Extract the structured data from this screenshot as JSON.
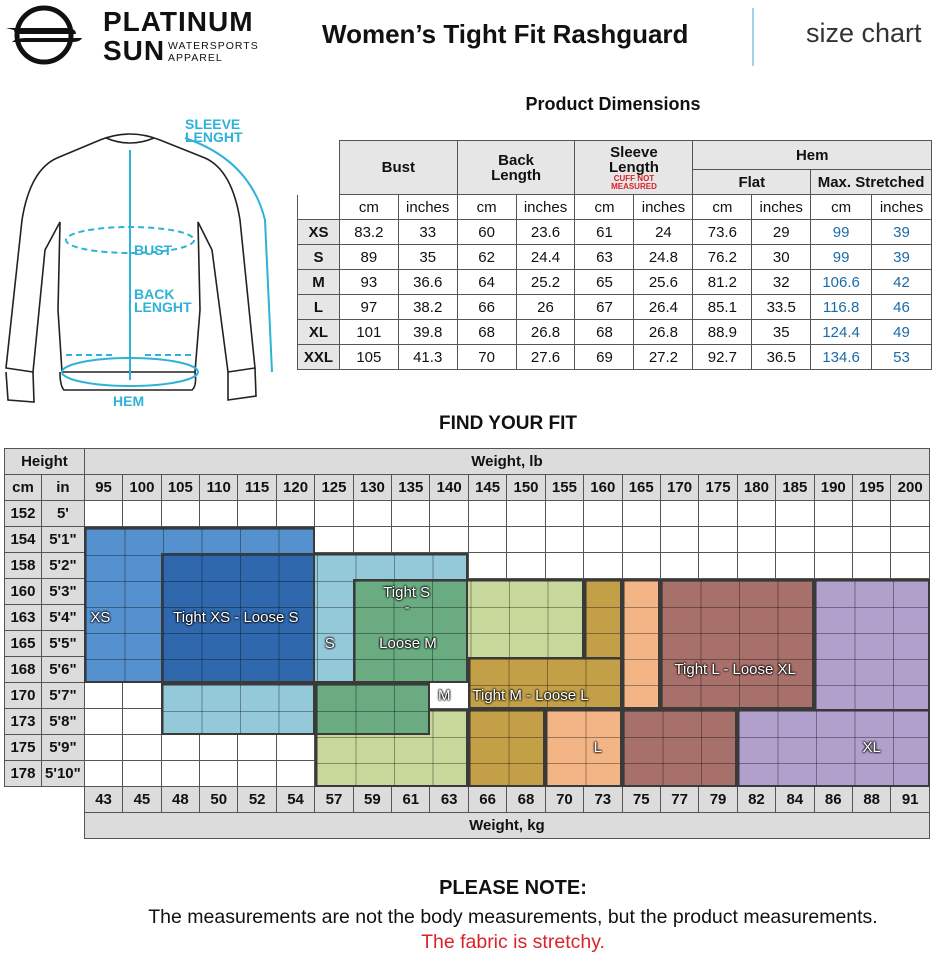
{
  "brand": {
    "name_line1": "PLATINUM",
    "name_line2": "SUN",
    "sub_line1": "WATERSPORTS",
    "sub_line2": "APPAREL"
  },
  "header": {
    "title": "Women’s Tight Fit Rashguard",
    "size_chart": "size chart"
  },
  "diagram": {
    "sleeve_label": "SLEEVE\nLENGHT",
    "bust_label": "BUST",
    "back_label": "BACK\nLENGHT",
    "hem_label": "HEM"
  },
  "dimensions": {
    "title": "Product Dimensions",
    "groups": {
      "bust": "Bust",
      "back": "Back Length",
      "sleeve": "Sleeve Length",
      "sleeve_note": "CUFF NOT MEASURED",
      "hem": "Hem",
      "flat": "Flat",
      "stretched": "Max. Stretched"
    },
    "units": [
      "cm",
      "inches",
      "cm",
      "inches",
      "cm",
      "inches",
      "cm",
      "inches",
      "cm",
      "inches"
    ],
    "rows": [
      {
        "size": "XS",
        "values": [
          "83.2",
          "33",
          "60",
          "23.6",
          "61",
          "24",
          "73.6",
          "29",
          "99",
          "39"
        ]
      },
      {
        "size": "S",
        "values": [
          "89",
          "35",
          "62",
          "24.4",
          "63",
          "24.8",
          "76.2",
          "30",
          "99",
          "39"
        ]
      },
      {
        "size": "M",
        "values": [
          "93",
          "36.6",
          "64",
          "25.2",
          "65",
          "25.6",
          "81.2",
          "32",
          "106.6",
          "42"
        ]
      },
      {
        "size": "L",
        "values": [
          "97",
          "38.2",
          "66",
          "26",
          "67",
          "26.4",
          "85.1",
          "33.5",
          "116.8",
          "46"
        ]
      },
      {
        "size": "XL",
        "values": [
          "101",
          "39.8",
          "68",
          "26.8",
          "68",
          "26.8",
          "88.9",
          "35",
          "124.4",
          "49"
        ]
      },
      {
        "size": "XXL",
        "values": [
          "105",
          "41.3",
          "70",
          "27.6",
          "69",
          "27.2",
          "92.7",
          "36.5",
          "134.6",
          "53"
        ]
      }
    ]
  },
  "fit": {
    "title": "FIND YOUR FIT",
    "height_label": "Height",
    "weight_lb_label": "Weight, lb",
    "weight_kg_label": "Weight, kg",
    "cm_label": "cm",
    "in_label": "in",
    "weights_lb": [
      "95",
      "100",
      "105",
      "110",
      "115",
      "120",
      "125",
      "130",
      "135",
      "140",
      "145",
      "150",
      "155",
      "160",
      "165",
      "170",
      "175",
      "180",
      "185",
      "190",
      "195",
      "200"
    ],
    "weights_kg": [
      "43",
      "45",
      "48",
      "50",
      "52",
      "54",
      "57",
      "59",
      "61",
      "63",
      "66",
      "68",
      "70",
      "73",
      "75",
      "77",
      "79",
      "82",
      "84",
      "86",
      "88",
      "91"
    ],
    "heights": [
      {
        "cm": "152",
        "in": "5'"
      },
      {
        "cm": "154",
        "in": "5'1\""
      },
      {
        "cm": "158",
        "in": "5'2\""
      },
      {
        "cm": "160",
        "in": "5'3\""
      },
      {
        "cm": "163",
        "in": "5'4\""
      },
      {
        "cm": "165",
        "in": "5'5\""
      },
      {
        "cm": "168",
        "in": "5'6\""
      },
      {
        "cm": "170",
        "in": "5'7\""
      },
      {
        "cm": "173",
        "in": "5'8\""
      },
      {
        "cm": "175",
        "in": "5'9\""
      },
      {
        "cm": "178",
        "in": "5'10\""
      }
    ],
    "zone_labels": {
      "xs": "XS",
      "tight_xs": "Tight XS - Loose S",
      "s": "S",
      "tight_s_1": "Tight S",
      "tight_s_2": "-",
      "tight_s_3": "Loose M",
      "m": "M",
      "tight_m": "Tight M - Loose L",
      "l": "L",
      "tight_l": "Tight L - Loose XL",
      "xl": "XL"
    },
    "colors": {
      "xs": "#5590cf",
      "tight_xs": "#3068ae",
      "s": "#94c9da",
      "tight_s": "#6aab81",
      "m": "#c8d89a",
      "tight_m": "#c3a048",
      "l": "#f4b586",
      "tight_l": "#a8706a",
      "xl": "#b0a0cb"
    }
  },
  "note": {
    "title": "PLEASE NOTE:",
    "line1": "The measurements are not the body measurements, but the product measurements.",
    "line2": "The fabric is stretchy."
  }
}
